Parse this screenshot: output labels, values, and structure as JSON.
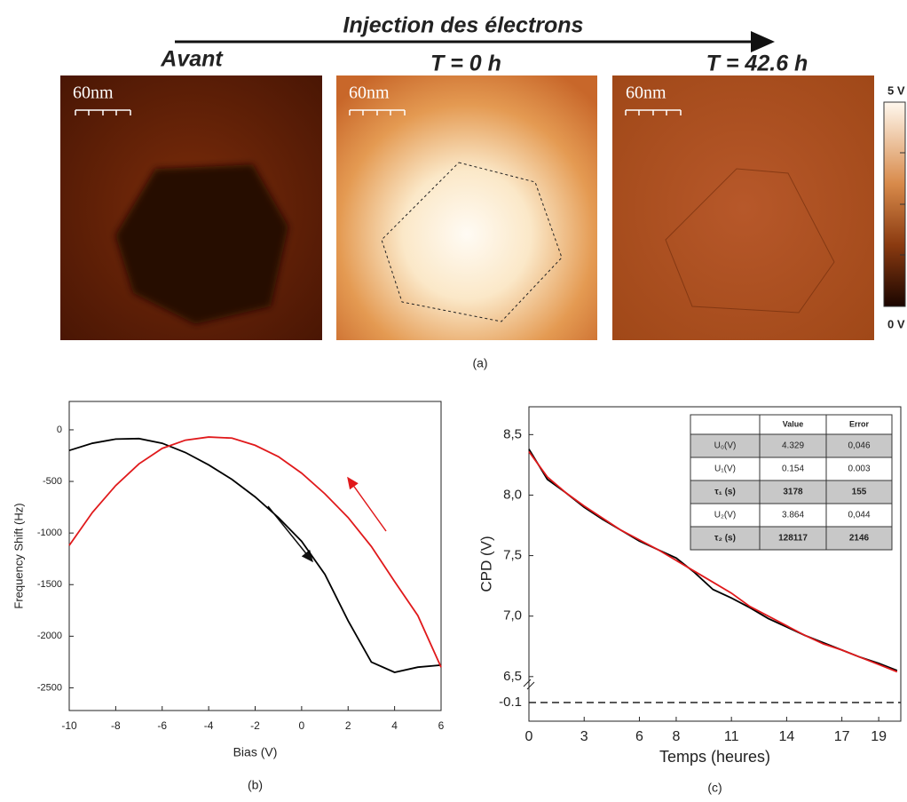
{
  "figure": {
    "arrow_label": "Injection des électrons",
    "panels": [
      {
        "label": "Avant",
        "scale": "60nm"
      },
      {
        "label": "T = 0 h",
        "scale": "60nm"
      },
      {
        "label": "T = 42.6 h",
        "scale": "60nm"
      }
    ],
    "colorbar": {
      "max": "5 V",
      "min": "0 V"
    },
    "caption": "(a)"
  },
  "chart_data": [
    {
      "type": "line",
      "caption": "(b)",
      "x_label": "Bias (V)",
      "y_label": "Frequency Shift (Hz)",
      "x": [
        -10,
        -9,
        -8,
        -7,
        -6,
        -5,
        -4,
        -3,
        -2,
        -1,
        0,
        1,
        2,
        3,
        4,
        5,
        6
      ],
      "series": [
        {
          "color": "#000000",
          "values": [
            -200,
            -130,
            -90,
            -85,
            -130,
            -220,
            -340,
            -480,
            -650,
            -850,
            -1080,
            -1400,
            -1850,
            -2250,
            -2350,
            -2300,
            -2280
          ]
        },
        {
          "color": "#e0191b",
          "values": [
            -1120,
            -800,
            -540,
            -330,
            -180,
            -100,
            -70,
            -80,
            -150,
            -260,
            -420,
            -620,
            -850,
            -1130,
            -1470,
            -1800,
            -2300
          ]
        }
      ],
      "xlim": [
        -10,
        6
      ],
      "xticks": [
        -10,
        -8,
        -6,
        -4,
        -2,
        0,
        2,
        4,
        6
      ],
      "ylim": [
        -2720,
        275
      ],
      "yticks": [
        0,
        -500,
        -1000,
        -1500,
        -2000,
        -2500
      ]
    },
    {
      "type": "line",
      "caption": "(c)",
      "x_label": "Temps (heures)",
      "y_label": "CPD (V)",
      "x": [
        0,
        1,
        2,
        3,
        4,
        5,
        6,
        7,
        8,
        9,
        10,
        11,
        12,
        13,
        14,
        15,
        16,
        17,
        18,
        19,
        20
      ],
      "series": [
        {
          "color": "#000000",
          "values": [
            8.38,
            8.13,
            8.02,
            7.9,
            7.8,
            7.71,
            7.62,
            7.55,
            7.48,
            7.36,
            7.22,
            7.15,
            7.07,
            6.98,
            6.91,
            6.84,
            6.78,
            6.72,
            6.66,
            6.61,
            6.55
          ]
        },
        {
          "color": "#e0191b",
          "values": [
            8.36,
            8.15,
            8.02,
            7.91,
            7.81,
            7.71,
            7.63,
            7.55,
            7.46,
            7.37,
            7.28,
            7.19,
            7.08,
            7.0,
            6.92,
            6.84,
            6.77,
            6.72,
            6.66,
            6.6,
            6.54
          ]
        }
      ],
      "xlim": [
        0,
        20.2
      ],
      "xticks": [
        0,
        3,
        6,
        8,
        11,
        14,
        17,
        19
      ],
      "ylim": [
        6.44,
        8.73
      ],
      "yticks": [
        {
          "value": 8.5,
          "label": "8,5"
        },
        {
          "value": 8,
          "label": "8,0"
        },
        {
          "value": 7.5,
          "label": "7,5"
        },
        {
          "value": 7,
          "label": "7,0"
        },
        {
          "value": 6.5,
          "label": "6,5"
        }
      ],
      "lower_ylim": [
        -0.2,
        0
      ],
      "lower_yticks": [
        -0.1
      ],
      "table": {
        "columns": [
          "Value",
          "Error"
        ],
        "rows": [
          [
            "U₀(V)",
            "4.329",
            "0,046"
          ],
          [
            "U₁(V)",
            "0.154",
            "0.003"
          ],
          [
            "τ₁ (s)",
            "3178",
            "155"
          ],
          [
            "U₂(V)",
            "3.864",
            "0,044"
          ],
          [
            "τ₂ (s)",
            "128117",
            "2146"
          ]
        ]
      }
    }
  ]
}
